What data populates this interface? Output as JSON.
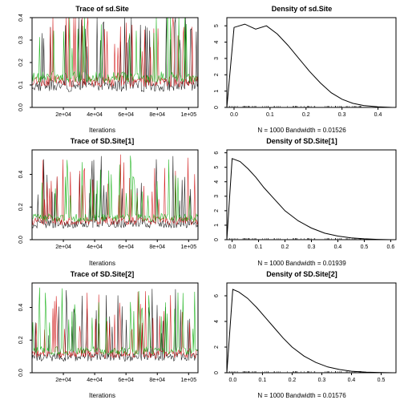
{
  "panels": [
    {
      "title": "Trace of sd.Site",
      "xlabel": "Iterations",
      "type": "trace",
      "xticks": [
        "2e+04",
        "4e+04",
        "6e+04",
        "8e+04",
        "1e+05"
      ],
      "yticks": [
        "0.0",
        "0.1",
        "0.2",
        "0.3",
        "0.4"
      ],
      "ylim": [
        0.0,
        0.4
      ],
      "line_colors": [
        "#000000",
        "#cd0000",
        "#00aa00"
      ],
      "background_color": "#ffffff",
      "axis_color": "#000000",
      "font_size_axis": 7
    },
    {
      "title": "Density of sd.Site",
      "xlabel": "N = 1000   Bandwidth = 0.01526",
      "type": "density",
      "xticks": [
        "0.0",
        "0.1",
        "0.2",
        "0.3",
        "0.4"
      ],
      "yticks": [
        "0",
        "1",
        "2",
        "3",
        "4",
        "5"
      ],
      "xlim": [
        -0.02,
        0.45
      ],
      "ylim": [
        0,
        5.5
      ],
      "curve": [
        [
          -0.02,
          0
        ],
        [
          0.0,
          4.9
        ],
        [
          0.03,
          5.1
        ],
        [
          0.06,
          4.8
        ],
        [
          0.09,
          5.0
        ],
        [
          0.12,
          4.5
        ],
        [
          0.15,
          3.8
        ],
        [
          0.18,
          3.0
        ],
        [
          0.21,
          2.2
        ],
        [
          0.24,
          1.5
        ],
        [
          0.27,
          0.9
        ],
        [
          0.3,
          0.5
        ],
        [
          0.33,
          0.25
        ],
        [
          0.36,
          0.12
        ],
        [
          0.4,
          0.04
        ],
        [
          0.44,
          0
        ]
      ],
      "line_color": "#000000",
      "background_color": "#ffffff",
      "axis_color": "#000000",
      "font_size_axis": 7
    },
    {
      "title": "Trace of SD.Site[1]",
      "xlabel": "Iterations",
      "type": "trace",
      "xticks": [
        "2e+04",
        "4e+04",
        "6e+04",
        "8e+04",
        "1e+05"
      ],
      "yticks": [
        "0.0",
        "0.2",
        "0.4"
      ],
      "ylim": [
        0.0,
        0.55
      ],
      "line_colors": [
        "#000000",
        "#cd0000",
        "#00aa00"
      ],
      "background_color": "#ffffff",
      "axis_color": "#000000",
      "font_size_axis": 7
    },
    {
      "title": "Density of SD.Site[1]",
      "xlabel": "N = 1000   Bandwidth = 0.01939",
      "type": "density",
      "xticks": [
        "0.0",
        "0.1",
        "0.2",
        "0.3",
        "0.4",
        "0.5",
        "0.6"
      ],
      "yticks": [
        "0",
        "1",
        "2",
        "3",
        "4",
        "5",
        "6"
      ],
      "xlim": [
        -0.02,
        0.62
      ],
      "ylim": [
        0,
        6.2
      ],
      "curve": [
        [
          -0.02,
          0
        ],
        [
          0.0,
          5.6
        ],
        [
          0.03,
          5.4
        ],
        [
          0.06,
          4.9
        ],
        [
          0.09,
          4.3
        ],
        [
          0.12,
          3.6
        ],
        [
          0.16,
          2.8
        ],
        [
          0.2,
          2.0
        ],
        [
          0.25,
          1.3
        ],
        [
          0.3,
          0.8
        ],
        [
          0.35,
          0.45
        ],
        [
          0.4,
          0.25
        ],
        [
          0.45,
          0.13
        ],
        [
          0.5,
          0.06
        ],
        [
          0.55,
          0.02
        ],
        [
          0.6,
          0
        ]
      ],
      "line_color": "#000000",
      "background_color": "#ffffff",
      "axis_color": "#000000",
      "font_size_axis": 7
    },
    {
      "title": "Trace of SD.Site[2]",
      "xlabel": "Iterations",
      "type": "trace",
      "xticks": [
        "2e+04",
        "4e+04",
        "6e+04",
        "8e+04",
        "1e+05"
      ],
      "yticks": [
        "0.0",
        "0.2",
        "0.4"
      ],
      "ylim": [
        0.0,
        0.55
      ],
      "line_colors": [
        "#000000",
        "#cd0000",
        "#00aa00"
      ],
      "background_color": "#ffffff",
      "axis_color": "#000000",
      "font_size_axis": 7
    },
    {
      "title": "Density of SD.Site[2]",
      "xlabel": "N = 1000   Bandwidth = 0.01576",
      "type": "density",
      "xticks": [
        "0.0",
        "0.1",
        "0.2",
        "0.3",
        "0.4",
        "0.5"
      ],
      "yticks": [
        "0",
        "2",
        "4",
        "6"
      ],
      "xlim": [
        -0.02,
        0.55
      ],
      "ylim": [
        0,
        7.0
      ],
      "curve": [
        [
          -0.02,
          0
        ],
        [
          0.0,
          6.5
        ],
        [
          0.02,
          6.3
        ],
        [
          0.05,
          5.8
        ],
        [
          0.08,
          5.1
        ],
        [
          0.11,
          4.3
        ],
        [
          0.14,
          3.5
        ],
        [
          0.17,
          2.7
        ],
        [
          0.2,
          2.0
        ],
        [
          0.24,
          1.3
        ],
        [
          0.28,
          0.8
        ],
        [
          0.32,
          0.45
        ],
        [
          0.36,
          0.25
        ],
        [
          0.4,
          0.12
        ],
        [
          0.45,
          0.05
        ],
        [
          0.5,
          0.01
        ],
        [
          0.54,
          0
        ]
      ],
      "line_color": "#000000",
      "background_color": "#ffffff",
      "axis_color": "#000000",
      "font_size_axis": 7
    }
  ]
}
